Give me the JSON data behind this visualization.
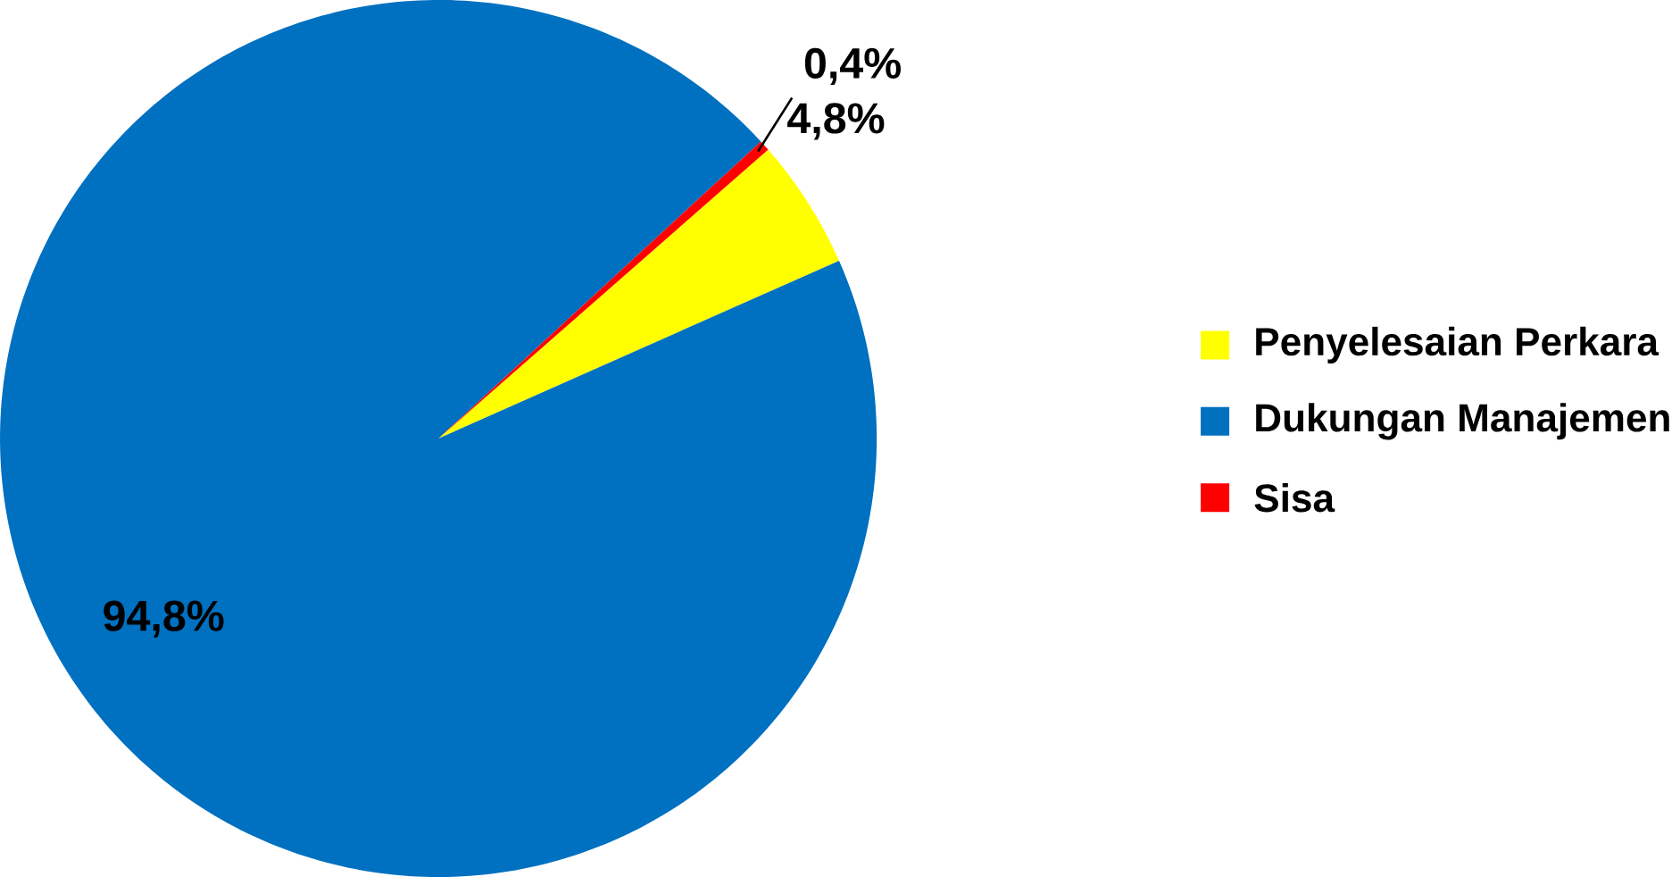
{
  "chart_data": {
    "type": "pie",
    "categories": [
      "Penyelesaian Perkara",
      "Dukungan Manajemen",
      "Sisa"
    ],
    "values": [
      4.8,
      94.8,
      0.4
    ],
    "colors": [
      "#ffff00",
      "#0070c0",
      "#ff0000"
    ],
    "value_labels": [
      "4,8%",
      "94,8%",
      "0,4%"
    ],
    "legend": "right"
  }
}
